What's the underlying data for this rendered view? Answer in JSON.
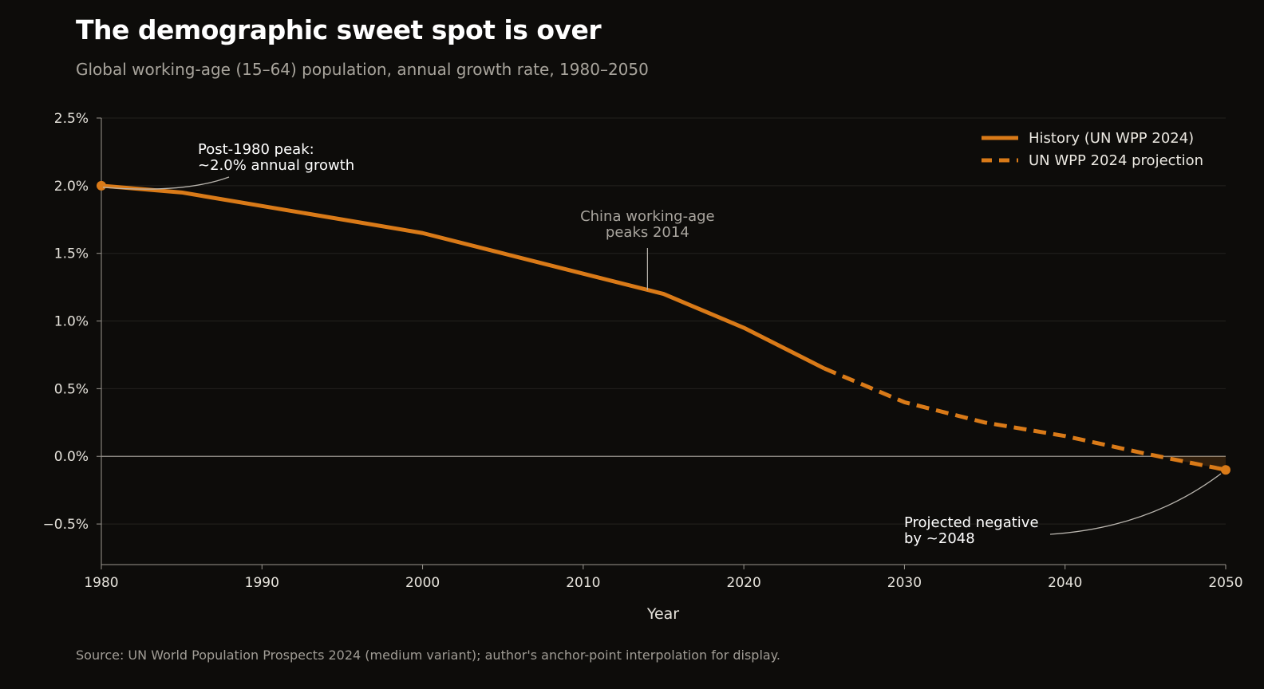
{
  "header": {
    "title": "The demographic sweet spot is over",
    "subtitle": "Global working-age (15–64) population, annual growth rate, 1980–2050"
  },
  "footer": {
    "source": "Source: UN World Population Prospects 2024 (medium variant); author's anchor-point interpolation for display."
  },
  "colors": {
    "background": "#0d0c0a",
    "series": "#d97a18",
    "grid": "#24221f",
    "axis": "#9a968f",
    "annotation_line": "#b9b5ae"
  },
  "chart_data": {
    "type": "line",
    "title": "The demographic sweet spot is over",
    "subtitle": "Global working-age (15–64) population, annual growth rate, 1980–2050",
    "xlabel": "Year",
    "ylabel": "",
    "xlim": [
      1980,
      2050
    ],
    "ylim": [
      -0.8,
      2.5
    ],
    "x_ticks": [
      1980,
      1990,
      2000,
      2010,
      2020,
      2030,
      2040,
      2050
    ],
    "x_tick_labels": [
      "1980",
      "1990",
      "2000",
      "2010",
      "2020",
      "2030",
      "2040",
      "2050"
    ],
    "y_ticks": [
      -0.5,
      0.0,
      0.5,
      1.0,
      1.5,
      2.0,
      2.5
    ],
    "y_tick_labels": [
      "−0.5%",
      "0.0%",
      "0.5%",
      "1.0%",
      "1.5%",
      "2.0%",
      "2.5%"
    ],
    "grid": true,
    "legend_position": "top-right",
    "series": [
      {
        "name": "History (UN WPP 2024)",
        "style": "solid",
        "x": [
          1980,
          1985,
          1990,
          1995,
          2000,
          2005,
          2010,
          2015,
          2020,
          2025
        ],
        "y": [
          2.0,
          1.95,
          1.85,
          1.75,
          1.65,
          1.5,
          1.35,
          1.2,
          0.95,
          0.65
        ]
      },
      {
        "name": "UN WPP 2024 projection",
        "style": "dashed",
        "x": [
          2025,
          2030,
          2035,
          2040,
          2045,
          2050
        ],
        "y": [
          0.65,
          0.4,
          0.25,
          0.15,
          0.02,
          -0.1
        ]
      }
    ],
    "annotations": [
      {
        "id": "peak",
        "lines": [
          "Post-1980 peak:",
          "~2.0% annual growth"
        ],
        "x": 1980,
        "y": 2.0
      },
      {
        "id": "china",
        "lines": [
          "China working-age",
          "peaks 2014"
        ],
        "x": 2014,
        "y": 1.23
      },
      {
        "id": "negative",
        "lines": [
          "Projected negative",
          "by ~2048"
        ],
        "x": 2050,
        "y": -0.1
      }
    ]
  }
}
